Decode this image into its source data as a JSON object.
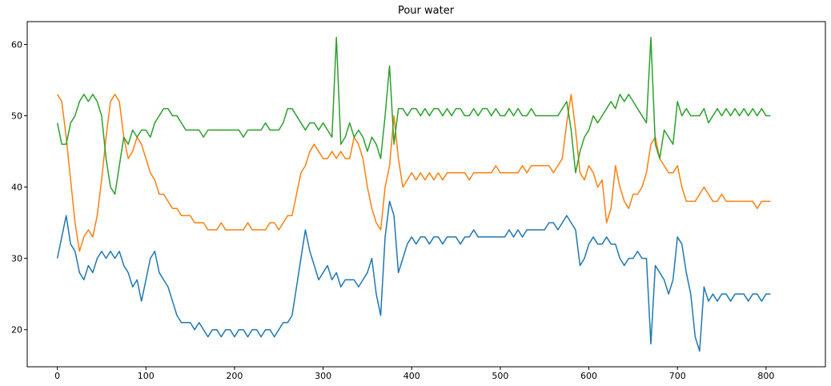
{
  "chart_data": {
    "type": "line",
    "title": "Pour water",
    "x": [
      0,
      5,
      10,
      15,
      20,
      25,
      30,
      35,
      40,
      45,
      50,
      55,
      60,
      65,
      70,
      75,
      80,
      85,
      90,
      95,
      100,
      105,
      110,
      115,
      120,
      125,
      130,
      135,
      140,
      145,
      150,
      155,
      160,
      165,
      170,
      175,
      180,
      185,
      190,
      195,
      200,
      205,
      210,
      215,
      220,
      225,
      230,
      235,
      240,
      245,
      250,
      255,
      260,
      265,
      270,
      275,
      280,
      285,
      290,
      295,
      300,
      305,
      310,
      315,
      320,
      325,
      330,
      335,
      340,
      345,
      350,
      355,
      360,
      365,
      370,
      375,
      380,
      385,
      390,
      395,
      400,
      405,
      410,
      415,
      420,
      425,
      430,
      435,
      440,
      445,
      450,
      455,
      460,
      465,
      470,
      475,
      480,
      485,
      490,
      495,
      500,
      505,
      510,
      515,
      520,
      525,
      530,
      535,
      540,
      545,
      550,
      555,
      560,
      565,
      570,
      575,
      580,
      585,
      590,
      595,
      600,
      605,
      610,
      615,
      620,
      625,
      630,
      635,
      640,
      645,
      650,
      655,
      660,
      665,
      670,
      675,
      680,
      685,
      690,
      695,
      700,
      705,
      710,
      715,
      720,
      725,
      730,
      735,
      740,
      745,
      750,
      755,
      760,
      765,
      770,
      775,
      780,
      785,
      790,
      795,
      800,
      805
    ],
    "series": [
      {
        "color": "#1f77b4",
        "values": [
          30,
          33,
          36,
          32,
          31,
          28,
          27,
          29,
          28,
          30,
          31,
          30,
          31,
          30,
          31,
          29,
          28,
          26,
          27,
          24,
          27,
          30,
          31,
          28,
          27,
          26,
          24,
          22,
          21,
          21,
          21,
          20,
          21,
          20,
          19,
          20,
          20,
          19,
          20,
          20,
          19,
          20,
          20,
          19,
          20,
          20,
          19,
          20,
          20,
          19,
          20,
          21,
          21,
          22,
          26,
          30,
          34,
          31,
          29,
          27,
          28,
          29,
          27,
          28,
          26,
          27,
          27,
          27,
          26,
          27,
          28,
          30,
          25,
          22,
          33,
          38,
          36,
          28,
          30,
          32,
          33,
          32,
          33,
          33,
          32,
          33,
          33,
          32,
          33,
          33,
          33,
          32,
          33,
          33,
          34,
          33,
          33,
          33,
          33,
          33,
          33,
          33,
          34,
          33,
          34,
          33,
          34,
          34,
          34,
          34,
          34,
          35,
          35,
          34,
          35,
          36,
          35,
          34,
          29,
          30,
          32,
          33,
          32,
          32,
          33,
          32,
          32,
          30,
          29,
          30,
          30,
          31,
          30,
          30,
          18,
          29,
          28,
          27,
          25,
          27,
          33,
          32,
          28,
          25,
          19,
          17,
          26,
          24,
          25,
          24,
          25,
          25,
          24,
          25,
          25,
          25,
          24,
          25,
          25,
          24,
          25,
          25
        ]
      },
      {
        "color": "#ff7f0e",
        "values": [
          53,
          52,
          47,
          41,
          35,
          31,
          33,
          34,
          33,
          36,
          41,
          47,
          52,
          53,
          52,
          47,
          44,
          45,
          47,
          46,
          44,
          42,
          41,
          39,
          39,
          38,
          37,
          37,
          36,
          36,
          36,
          35,
          35,
          35,
          34,
          34,
          34,
          35,
          34,
          34,
          34,
          34,
          34,
          35,
          34,
          34,
          34,
          34,
          35,
          35,
          34,
          35,
          36,
          36,
          39,
          42,
          43,
          45,
          46,
          45,
          44,
          44,
          45,
          44,
          45,
          44,
          44,
          47,
          46,
          44,
          40,
          37,
          35,
          34,
          40,
          43,
          50,
          44,
          40,
          41,
          42,
          41,
          42,
          41,
          42,
          41,
          42,
          41,
          42,
          42,
          42,
          42,
          42,
          41,
          42,
          42,
          42,
          42,
          42,
          43,
          42,
          42,
          42,
          42,
          42,
          43,
          42,
          43,
          43,
          43,
          43,
          43,
          42,
          43,
          44,
          49,
          53,
          48,
          42,
          41,
          43,
          42,
          40,
          41,
          35,
          37,
          43,
          40,
          38,
          37,
          39,
          39,
          40,
          42,
          46,
          47,
          44,
          43,
          42,
          42,
          43,
          40,
          38,
          38,
          38,
          39,
          40,
          39,
          38,
          38,
          39,
          38,
          38,
          38,
          38,
          38,
          38,
          38,
          37,
          38,
          38,
          38
        ]
      },
      {
        "color": "#2ca02c",
        "values": [
          49,
          46,
          46,
          49,
          50,
          52,
          53,
          52,
          53,
          52,
          50,
          44,
          40,
          39,
          43,
          47,
          46,
          48,
          47,
          48,
          48,
          47,
          49,
          50,
          51,
          51,
          50,
          50,
          49,
          48,
          48,
          48,
          48,
          47,
          48,
          48,
          48,
          48,
          48,
          48,
          48,
          48,
          47,
          48,
          48,
          48,
          48,
          49,
          48,
          48,
          48,
          49,
          51,
          51,
          50,
          49,
          48,
          49,
          49,
          48,
          49,
          48,
          47,
          61,
          46,
          47,
          49,
          47,
          48,
          47,
          45,
          47,
          46,
          44,
          50,
          57,
          46,
          51,
          51,
          50,
          51,
          51,
          50,
          51,
          50,
          51,
          51,
          50,
          51,
          50,
          51,
          51,
          50,
          50,
          51,
          50,
          51,
          51,
          50,
          51,
          50,
          50,
          51,
          50,
          51,
          50,
          50,
          51,
          50,
          50,
          50,
          50,
          50,
          50,
          51,
          52,
          48,
          42,
          45,
          47,
          48,
          50,
          49,
          50,
          51,
          52,
          51,
          53,
          52,
          53,
          52,
          51,
          50,
          49,
          61,
          46,
          44,
          48,
          47,
          46,
          52,
          50,
          51,
          50,
          50,
          50,
          51,
          49,
          50,
          51,
          50,
          51,
          50,
          51,
          50,
          51,
          50,
          51,
          50,
          51,
          50,
          50
        ]
      }
    ],
    "xlim": [
      -34,
      867
    ],
    "xticks": [
      0,
      100,
      200,
      300,
      400,
      500,
      600,
      700,
      800
    ],
    "ylim": [
      14.8,
      63.2
    ],
    "yticks": [
      20,
      30,
      40,
      50,
      60
    ]
  }
}
